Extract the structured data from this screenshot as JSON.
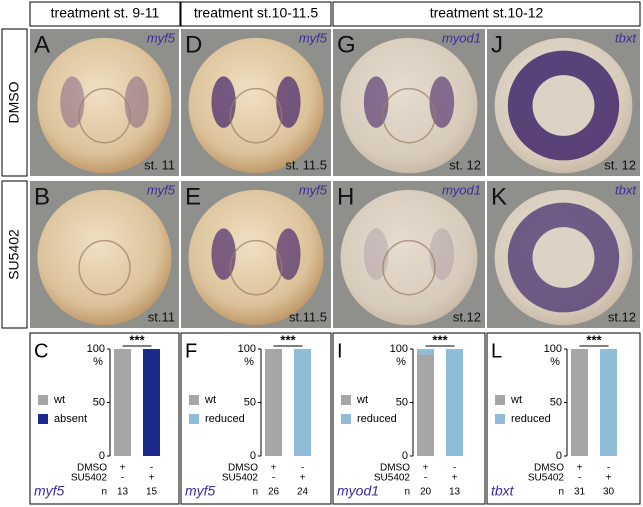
{
  "column_headers": [
    "treatment st. 9-11",
    "treatment st.10-11.5",
    "treatment st.10-12"
  ],
  "row_labels": [
    "DMSO",
    "SU5402"
  ],
  "photo_panels": [
    [
      {
        "letter": "A",
        "gene": "myf5",
        "stage": "st. 11"
      },
      {
        "letter": "D",
        "gene": "myf5",
        "stage": "st. 11.5"
      },
      {
        "letter": "G",
        "gene": "myod1",
        "stage": "st. 12"
      },
      {
        "letter": "J",
        "gene": "tbxt",
        "stage": "st. 12"
      }
    ],
    [
      {
        "letter": "B",
        "gene": "myf5",
        "stage": "st.11"
      },
      {
        "letter": "E",
        "gene": "myf5",
        "stage": "st.11.5"
      },
      {
        "letter": "H",
        "gene": "myod1",
        "stage": "st.12"
      },
      {
        "letter": "K",
        "gene": "tbxt",
        "stage": "st.12"
      }
    ]
  ],
  "chart_data": [
    {
      "type": "bar",
      "stacked": true,
      "letter": "C",
      "gene": "myf5",
      "significance": "***",
      "y_unit": "%",
      "ylim": [
        0,
        100
      ],
      "yticks": [
        0,
        50,
        100
      ],
      "treatment_rows": [
        {
          "name": "DMSO",
          "marks": [
            "+",
            "-"
          ]
        },
        {
          "name": "SU5402",
          "marks": [
            "-",
            "+"
          ]
        }
      ],
      "n_label": "n",
      "n": [
        13,
        15
      ],
      "series": [
        {
          "name": "wt",
          "color": "#a6a6a6",
          "values": [
            100,
            0
          ]
        },
        {
          "name": "absent",
          "color": "#1c2a8c",
          "values": [
            0,
            100
          ]
        }
      ]
    },
    {
      "type": "bar",
      "stacked": true,
      "letter": "F",
      "gene": "myf5",
      "significance": "***",
      "y_unit": "%",
      "ylim": [
        0,
        100
      ],
      "yticks": [
        0,
        50,
        100
      ],
      "treatment_rows": [
        {
          "name": "DMSO",
          "marks": [
            "+",
            "-"
          ]
        },
        {
          "name": "SU5402",
          "marks": [
            "-",
            "+"
          ]
        }
      ],
      "n_label": "n",
      "n": [
        26,
        24
      ],
      "series": [
        {
          "name": "wt",
          "color": "#a6a6a6",
          "values": [
            100,
            0
          ]
        },
        {
          "name": "reduced",
          "color": "#8fbcd8",
          "values": [
            0,
            100
          ]
        }
      ]
    },
    {
      "type": "bar",
      "stacked": true,
      "letter": "I",
      "gene": "myod1",
      "significance": "***",
      "y_unit": "%",
      "ylim": [
        0,
        100
      ],
      "yticks": [
        0,
        50,
        100
      ],
      "treatment_rows": [
        {
          "name": "DMSO",
          "marks": [
            "+",
            "-"
          ]
        },
        {
          "name": "SU5402",
          "marks": [
            "-",
            "+"
          ]
        }
      ],
      "n_label": "n",
      "n": [
        20,
        13
      ],
      "series": [
        {
          "name": "wt",
          "color": "#a6a6a6",
          "values": [
            95,
            0
          ]
        },
        {
          "name": "reduced",
          "color": "#8fbcd8",
          "values": [
            5,
            100
          ]
        }
      ]
    },
    {
      "type": "bar",
      "stacked": true,
      "letter": "L",
      "gene": "tbxt",
      "significance": "***",
      "y_unit": "%",
      "ylim": [
        0,
        100
      ],
      "yticks": [
        0,
        50,
        100
      ],
      "treatment_rows": [
        {
          "name": "DMSO",
          "marks": [
            "+",
            "-"
          ]
        },
        {
          "name": "SU5402",
          "marks": [
            "-",
            "+"
          ]
        }
      ],
      "n_label": "n",
      "n": [
        31,
        30
      ],
      "series": [
        {
          "name": "wt",
          "color": "#a6a6a6",
          "values": [
            100,
            0
          ]
        },
        {
          "name": "reduced",
          "color": "#8fbcd8",
          "values": [
            0,
            100
          ]
        }
      ]
    }
  ]
}
